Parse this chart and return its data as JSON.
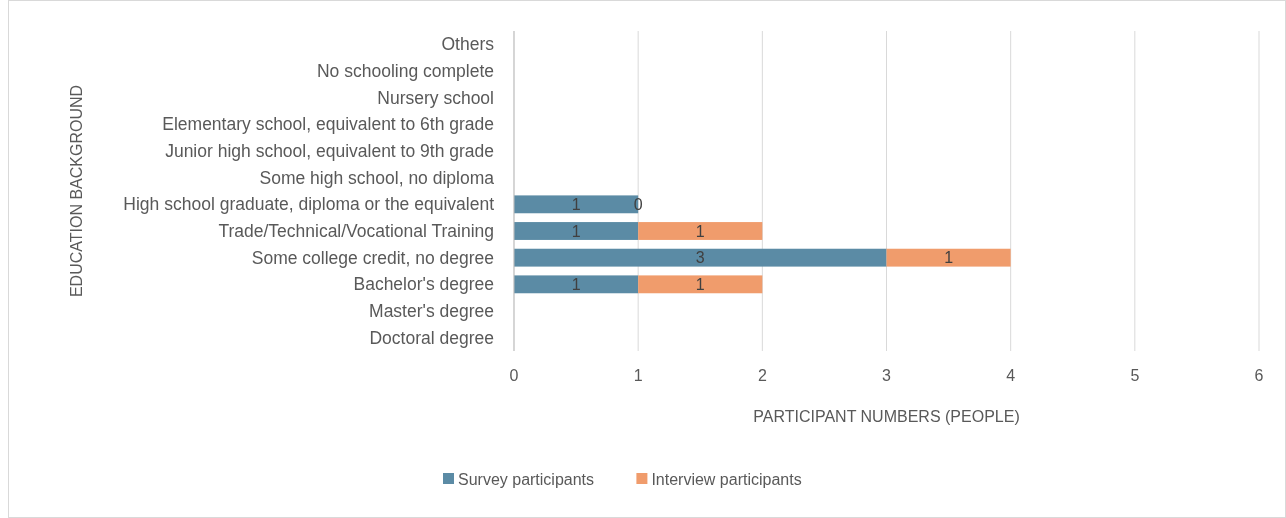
{
  "chart_data": {
    "type": "bar",
    "orientation": "horizontal",
    "stacked": true,
    "xlabel": "PARTICIPANT NUMBERS (PEOPLE)",
    "ylabel": "EDUCATION BACKGROUND",
    "categories": [
      "Others",
      "No schooling complete",
      "Nursery school",
      "Elementary school, equivalent to 6th grade",
      "Junior high school, equivalent to 9th grade",
      "Some high school, no diploma",
      "High school graduate, diploma or the equivalent",
      "Trade/Technical/Vocational Training",
      "Some college credit, no degree",
      "Bachelor's degree",
      "Master's degree",
      "Doctoral degree"
    ],
    "series": [
      {
        "name": "Survey participants",
        "color": "#5b8ba5",
        "values": [
          null,
          null,
          null,
          null,
          null,
          null,
          1,
          1,
          3,
          1,
          null,
          null
        ]
      },
      {
        "name": "Interview participants",
        "color": "#f09c6c",
        "values": [
          null,
          null,
          null,
          null,
          null,
          null,
          0,
          1,
          1,
          1,
          null,
          null
        ]
      }
    ],
    "xlim": [
      0,
      6
    ],
    "xticks": [
      0,
      1,
      2,
      3,
      4,
      5,
      6
    ],
    "grid": "x",
    "legend": "bottom",
    "data_labels": true
  }
}
